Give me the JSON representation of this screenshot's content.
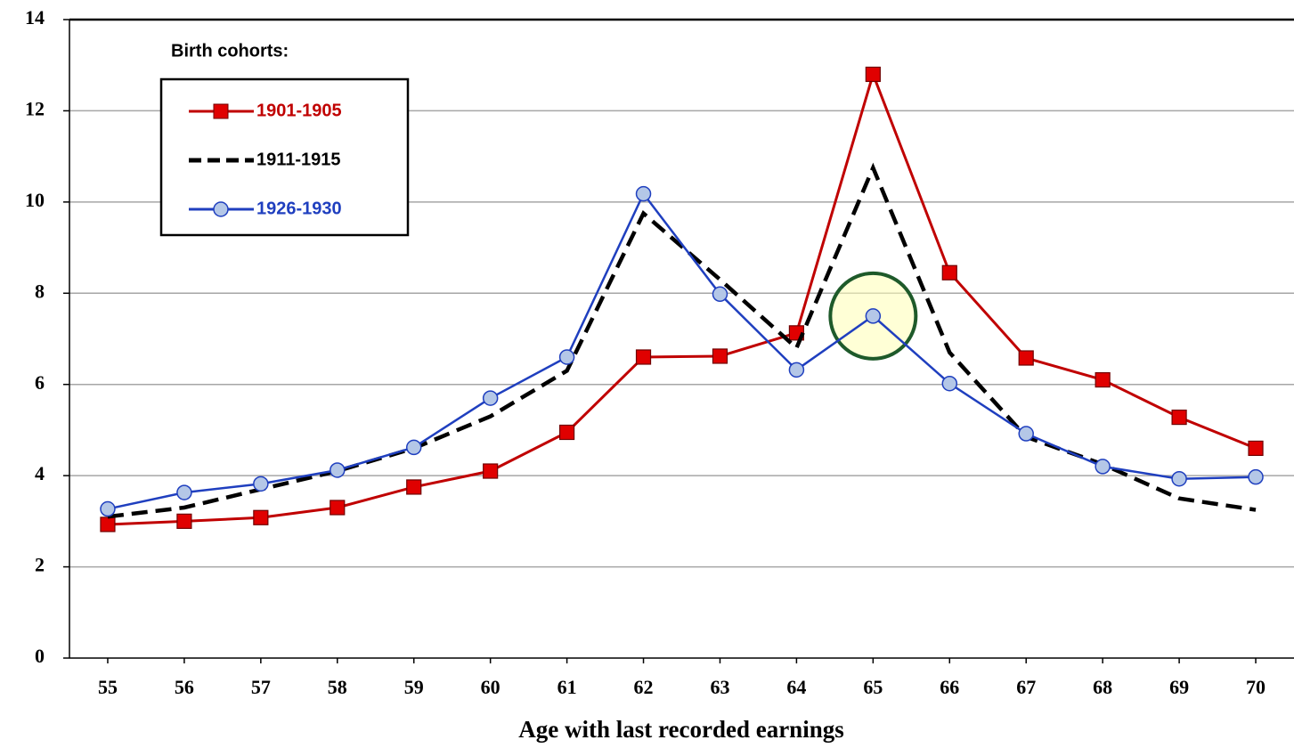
{
  "chart_data": {
    "type": "line",
    "x_label": "Age with last recorded earnings",
    "legend_title": "Birth cohorts:",
    "x": [
      55,
      56,
      57,
      58,
      59,
      60,
      61,
      62,
      63,
      64,
      65,
      66,
      67,
      68,
      69,
      70
    ],
    "xlim": [
      54.5,
      70.5
    ],
    "xticks": [
      55,
      56,
      57,
      58,
      59,
      60,
      61,
      62,
      63,
      64,
      65,
      66,
      67,
      68,
      69,
      70
    ],
    "ylim": [
      0,
      14
    ],
    "yticks": [
      0,
      2,
      4,
      6,
      8,
      10,
      12,
      14
    ],
    "grid": true,
    "legend": "upper left",
    "series": [
      {
        "name": "1901-1905",
        "color": "#c00000",
        "marker": "square",
        "dashed": false,
        "values": [
          2.93,
          3.0,
          3.08,
          3.3,
          3.75,
          4.1,
          4.95,
          6.6,
          6.62,
          7.13,
          12.8,
          8.45,
          6.58,
          6.1,
          5.28,
          4.6
        ]
      },
      {
        "name": "1911-1915",
        "color": "#000000",
        "marker": "none",
        "dashed": true,
        "values": [
          3.1,
          3.3,
          3.7,
          4.1,
          4.6,
          5.3,
          6.3,
          9.75,
          8.3,
          6.8,
          10.75,
          6.7,
          4.85,
          4.25,
          3.5,
          3.25
        ]
      },
      {
        "name": "1926-1930",
        "color": "#1f3fbf",
        "marker": "circle",
        "dashed": false,
        "values": [
          3.27,
          3.63,
          3.82,
          4.12,
          4.62,
          5.7,
          6.6,
          10.18,
          7.98,
          6.32,
          7.5,
          6.02,
          4.92,
          4.2,
          3.93,
          3.97
        ]
      }
    ]
  }
}
